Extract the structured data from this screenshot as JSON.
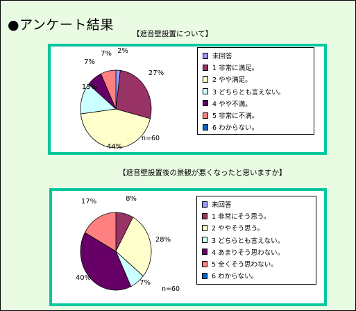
{
  "page": {
    "heading": "●アンケート結果"
  },
  "chart_data": [
    {
      "type": "pie",
      "caption": "【遮音壁設置について】",
      "n_label": "n=60",
      "slices": [
        {
          "label": "未回答",
          "value": 2,
          "data_label": "2%",
          "color": "#9999ff"
        },
        {
          "label": "1 非常に満足。",
          "value": 27,
          "data_label": "27%",
          "color": "#993366"
        },
        {
          "label": "2 やや満足。",
          "value": 44,
          "data_label": "44%",
          "color": "#ffffcc"
        },
        {
          "label": "3 どちらとも言えない。",
          "value": 13,
          "data_label": "13%",
          "color": "#ccffff"
        },
        {
          "label": "4 やや不満。",
          "value": 7,
          "data_label": "7%",
          "color": "#660066"
        },
        {
          "label": "5 非常に不満。",
          "value": 7,
          "data_label": "7%",
          "color": "#ff8080"
        },
        {
          "label": "6 わからない。",
          "value": 0,
          "data_label": "",
          "color": "#0066cc"
        }
      ]
    },
    {
      "type": "pie",
      "caption": "【遮音壁設置後の景観が悪くなったと思いますか】",
      "n_label": "n=60",
      "slices": [
        {
          "label": "未回答",
          "value": 0,
          "data_label": "",
          "color": "#9999ff"
        },
        {
          "label": "1 非常にそう思う。",
          "value": 8,
          "data_label": "8%",
          "color": "#993366"
        },
        {
          "label": "2 ややそう思う。",
          "value": 28,
          "data_label": "28%",
          "color": "#ffffcc"
        },
        {
          "label": "3 どちらとも言えない。",
          "value": 7,
          "data_label": "7%",
          "color": "#ccffff"
        },
        {
          "label": "4 あまりそう思わない。",
          "value": 40,
          "data_label": "40%",
          "color": "#660066"
        },
        {
          "label": "5 全くそう思わない。",
          "value": 17,
          "data_label": "17%",
          "color": "#ff8080"
        },
        {
          "label": "6 わからない。",
          "value": 0,
          "data_label": "",
          "color": "#0066cc"
        }
      ]
    }
  ]
}
